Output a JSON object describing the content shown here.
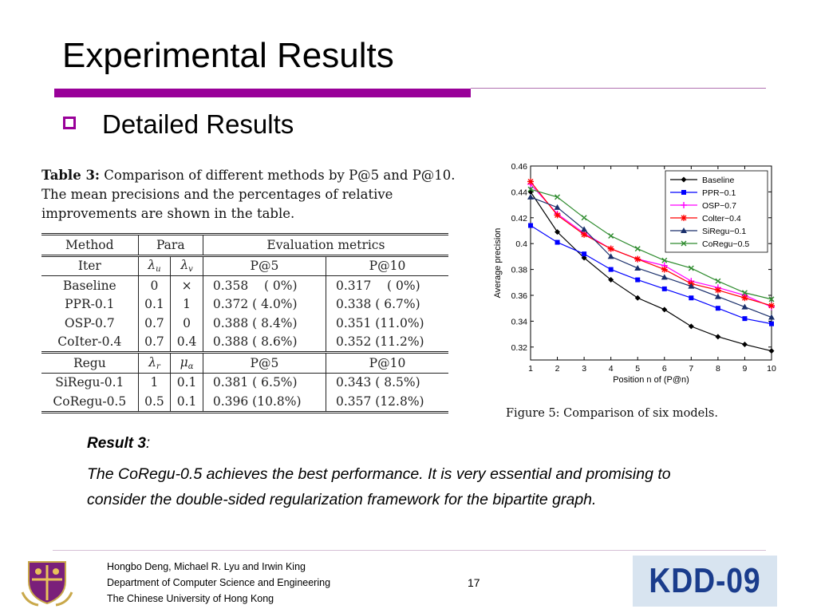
{
  "slide": {
    "title": "Experimental Results",
    "bullet": "Detailed Results"
  },
  "table": {
    "caption_prefix": "Table 3:",
    "caption_text": "Comparison of different methods by P@5 and P@10. The mean precisions and the percentages of relative improvements are shown in the table.",
    "head": {
      "method": "Method",
      "para": "Para",
      "eval": "Evaluation metrics"
    },
    "sub_head_iter": {
      "name": "Iter",
      "p1": "λ",
      "p1_sub": "u",
      "p2": "λ",
      "p2_sub": "v",
      "m1": "P@5",
      "m2": "P@10"
    },
    "rows_iter": [
      {
        "method": "Baseline",
        "a": "0",
        "b": "×",
        "p5": "0.358    ( 0%)",
        "p10": "0.317    ( 0%)"
      },
      {
        "method": "PPR-0.1",
        "a": "0.1",
        "b": "1",
        "p5": "0.372 ( 4.0%)",
        "p10": "0.338 ( 6.7%)"
      },
      {
        "method": "OSP-0.7",
        "a": "0.7",
        "b": "0",
        "p5": "0.388 ( 8.4%)",
        "p10": "0.351 (11.0%)"
      },
      {
        "method": "CoIter-0.4",
        "a": "0.7",
        "b": "0.4",
        "p5": "0.388 ( 8.6%)",
        "p10": "0.352 (11.2%)"
      }
    ],
    "sub_head_regu": {
      "name": "Regu",
      "p1": "λ",
      "p1_sub": "r",
      "p2": "μ",
      "p2_sub": "α",
      "m1": "P@5",
      "m2": "P@10"
    },
    "rows_regu": [
      {
        "method": "SiRegu-0.1",
        "a": "1",
        "b": "0.1",
        "p5": "0.381 ( 6.5%)",
        "p10": "0.343 ( 8.5%)"
      },
      {
        "method": "CoRegu-0.5",
        "a": "0.5",
        "b": "0.1",
        "p5": "0.396 (10.8%)",
        "p10": "0.357 (12.8%)"
      }
    ]
  },
  "chart_data": {
    "type": "line",
    "xlabel": "Position n of (P@n)",
    "ylabel": "Average precision",
    "x": [
      1,
      2,
      3,
      4,
      5,
      6,
      7,
      8,
      9,
      10
    ],
    "xlim": [
      1,
      10
    ],
    "ylim": [
      0.31,
      0.46
    ],
    "yticks": [
      0.32,
      0.34,
      0.36,
      0.38,
      0.4,
      0.42,
      0.44,
      0.46
    ],
    "xticks": [
      1,
      2,
      3,
      4,
      5,
      6,
      7,
      8,
      9,
      10
    ],
    "legend_position": "top-right",
    "grid": false,
    "series": [
      {
        "name": "Baseline",
        "color": "#000000",
        "marker": "diamond",
        "values": [
          0.44,
          0.409,
          0.389,
          0.372,
          0.358,
          0.349,
          0.336,
          0.328,
          0.322,
          0.317
        ]
      },
      {
        "name": "PPR−0.1",
        "color": "#0000ff",
        "marker": "square",
        "values": [
          0.414,
          0.401,
          0.392,
          0.38,
          0.372,
          0.365,
          0.358,
          0.35,
          0.342,
          0.338
        ]
      },
      {
        "name": "OSP−0.7",
        "color": "#ff00ff",
        "marker": "plus",
        "values": [
          0.446,
          0.423,
          0.408,
          0.396,
          0.388,
          0.383,
          0.371,
          0.366,
          0.36,
          0.351
        ]
      },
      {
        "name": "Colter−0.4",
        "color": "#ff0000",
        "marker": "star",
        "values": [
          0.448,
          0.422,
          0.407,
          0.396,
          0.388,
          0.38,
          0.369,
          0.364,
          0.358,
          0.352
        ]
      },
      {
        "name": "SiRegu−0.1",
        "color": "#1a2f6b",
        "marker": "triangle",
        "values": [
          0.436,
          0.428,
          0.411,
          0.39,
          0.381,
          0.374,
          0.367,
          0.359,
          0.351,
          0.343
        ]
      },
      {
        "name": "CoRegu−0.5",
        "color": "#2e8b2e",
        "marker": "x",
        "values": [
          0.442,
          0.436,
          0.42,
          0.406,
          0.396,
          0.387,
          0.381,
          0.371,
          0.362,
          0.357
        ]
      }
    ]
  },
  "figure_caption": "Figure 5: Comparison of six models.",
  "result": {
    "heading": "Result 3",
    "heading_suffix": ":",
    "body": "The CoRegu-0.5 achieves the best performance. It is very essential and promising to consider the double-sided regularization framework for the bipartite graph."
  },
  "footer": {
    "authors": "Hongbo Deng, Michael R. Lyu and Irwin King",
    "department": "Department of Computer Science and Engineering",
    "university": "The Chinese University of Hong Kong",
    "page": "17",
    "logo_text": "KDD-09"
  },
  "colors": {
    "accent": "#990099",
    "logo_bg": "#d8e4f0",
    "logo_text": "#1a3c8c"
  }
}
